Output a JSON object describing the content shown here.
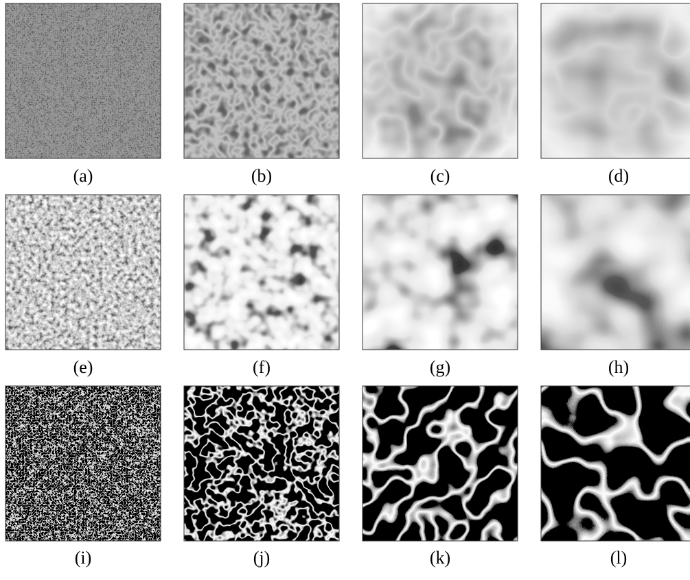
{
  "figure": {
    "captions": [
      "(a)",
      "(b)",
      "(c)",
      "(d)",
      "(e)",
      "(f)",
      "(g)",
      "(h)",
      "(i)",
      "(j)",
      "(k)",
      "(l)"
    ]
  }
}
